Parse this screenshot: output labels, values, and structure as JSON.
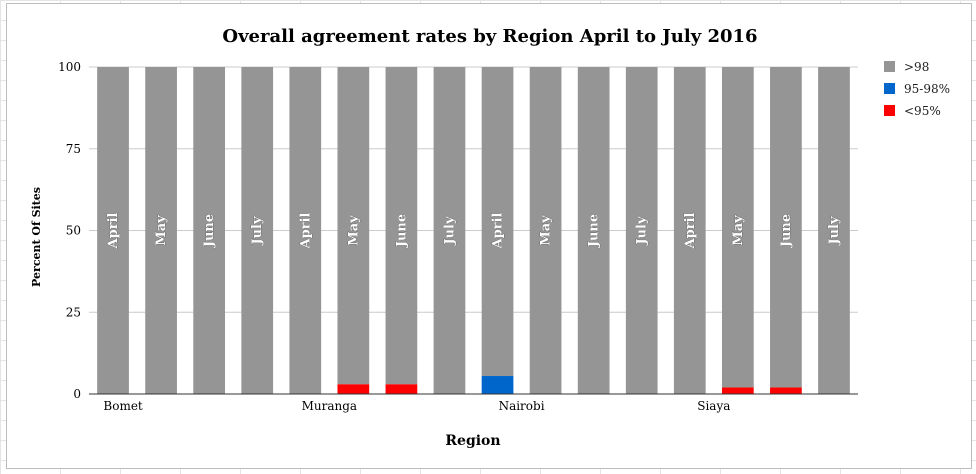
{
  "chart_data": {
    "type": "bar",
    "stacked": true,
    "title": "Overall agreement rates by Region April to July 2016",
    "xlabel": "Region",
    "ylabel": "Percent Of Sites",
    "ylim": [
      0,
      100
    ],
    "yticks": [
      "0",
      "25",
      "50",
      "75",
      "100"
    ],
    "grid": true,
    "legend_position": "right",
    "categories": [
      "April",
      "May",
      "June",
      "July",
      "April",
      "May",
      "June",
      "July",
      "April",
      "May",
      "June",
      "July",
      "April",
      "May",
      "June",
      "July"
    ],
    "group_labels": [
      "Bomet",
      "Muranga",
      "Nairobi",
      "Siaya"
    ],
    "series": [
      {
        "name": "<95%",
        "color": "#ff0000",
        "values": [
          0,
          0,
          0,
          0,
          0,
          3,
          3,
          0,
          0,
          0,
          0,
          0,
          0,
          2,
          2,
          0
        ]
      },
      {
        "name": "95-98%",
        "color": "#0066cc",
        "values": [
          0,
          0,
          0,
          0,
          0,
          0,
          0,
          0,
          5.5,
          0,
          0,
          0,
          0,
          0,
          0,
          0
        ]
      },
      {
        "name": ">98",
        "color": "#959595",
        "values": [
          100,
          100,
          100,
          100,
          100,
          97,
          97,
          100,
          94.5,
          100,
          100,
          100,
          100,
          98,
          98,
          100
        ]
      }
    ],
    "legend_order": [
      ">98",
      "95-98%",
      "<95%"
    ]
  }
}
